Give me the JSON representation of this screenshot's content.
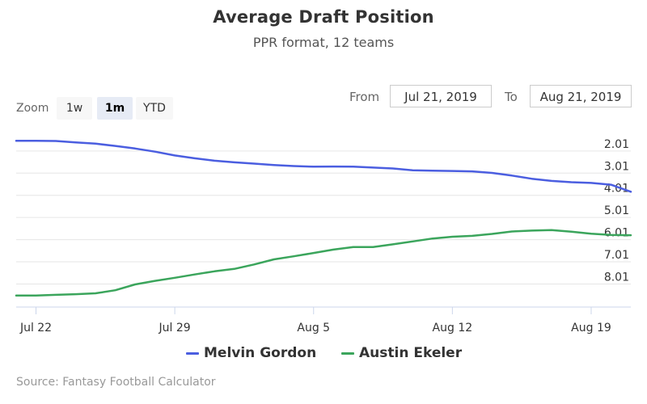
{
  "title": "Average Draft Position",
  "subtitle": "PPR format, 12 teams",
  "range_selector": {
    "zoom_label": "Zoom",
    "buttons": [
      {
        "label": "1w",
        "active": false
      },
      {
        "label": "1m",
        "active": true
      },
      {
        "label": "YTD",
        "active": false
      }
    ],
    "from_label": "From",
    "from_value": "Jul 21, 2019",
    "to_label": "To",
    "to_value": "Aug 21, 2019"
  },
  "credits": "Source: Fantasy Football Calculator",
  "colors": {
    "melvin_gordon": "#4b5ee0",
    "austin_ekeler": "#3ba55c",
    "grid": "#e6e6e6",
    "axis": "#ccd6eb"
  },
  "chart_data": {
    "type": "line",
    "title": "Average Draft Position",
    "subtitle": "PPR format, 12 teams",
    "xlabel": "",
    "ylabel": "",
    "y_reversed": true,
    "y_axis_side": "right",
    "ylim": [
      1.14,
      9.05
    ],
    "y_ticks": [
      "2.01",
      "3.01",
      "4.01",
      "5.01",
      "6.01",
      "7.01",
      "8.01"
    ],
    "x_ticks": [
      {
        "date": "2019-07-22",
        "label": "Jul 22"
      },
      {
        "date": "2019-07-29",
        "label": "Jul 29"
      },
      {
        "date": "2019-08-05",
        "label": "Aug 5"
      },
      {
        "date": "2019-08-12",
        "label": "Aug 12"
      },
      {
        "date": "2019-08-19",
        "label": "Aug 19"
      }
    ],
    "xlim": [
      "2019-07-21",
      "2019-08-21"
    ],
    "grid": true,
    "legend_position": "bottom",
    "series": [
      {
        "name": "Melvin Gordon",
        "color": "#4b5ee0",
        "x": [
          "2019-07-21",
          "2019-07-22",
          "2019-07-23",
          "2019-07-24",
          "2019-07-25",
          "2019-07-26",
          "2019-07-27",
          "2019-07-28",
          "2019-07-29",
          "2019-07-30",
          "2019-07-31",
          "2019-08-01",
          "2019-08-02",
          "2019-08-03",
          "2019-08-04",
          "2019-08-05",
          "2019-08-06",
          "2019-08-07",
          "2019-08-08",
          "2019-08-09",
          "2019-08-10",
          "2019-08-11",
          "2019-08-12",
          "2019-08-13",
          "2019-08-14",
          "2019-08-15",
          "2019-08-16",
          "2019-08-17",
          "2019-08-18",
          "2019-08-19",
          "2019-08-20",
          "2019-08-21"
        ],
        "values": [
          1.55,
          1.55,
          1.56,
          1.62,
          1.68,
          1.78,
          1.9,
          2.04,
          2.21,
          2.34,
          2.45,
          2.52,
          2.58,
          2.64,
          2.69,
          2.72,
          2.71,
          2.72,
          2.76,
          2.8,
          2.88,
          2.9,
          2.91,
          2.93,
          3.0,
          3.12,
          3.26,
          3.36,
          3.42,
          3.45,
          3.53,
          3.85
        ]
      },
      {
        "name": "Austin Ekeler",
        "color": "#3ba55c",
        "x": [
          "2019-07-21",
          "2019-07-22",
          "2019-07-23",
          "2019-07-24",
          "2019-07-25",
          "2019-07-26",
          "2019-07-27",
          "2019-07-28",
          "2019-07-29",
          "2019-07-30",
          "2019-07-31",
          "2019-08-01",
          "2019-08-02",
          "2019-08-03",
          "2019-08-04",
          "2019-08-05",
          "2019-08-06",
          "2019-08-07",
          "2019-08-08",
          "2019-08-09",
          "2019-08-10",
          "2019-08-11",
          "2019-08-12",
          "2019-08-13",
          "2019-08-14",
          "2019-08-15",
          "2019-08-16",
          "2019-08-17",
          "2019-08-18",
          "2019-08-19",
          "2019-08-20",
          "2019-08-21"
        ],
        "values": [
          8.53,
          8.53,
          8.5,
          8.47,
          8.43,
          8.29,
          8.03,
          7.87,
          7.73,
          7.58,
          7.44,
          7.33,
          7.13,
          6.9,
          6.76,
          6.61,
          6.46,
          6.34,
          6.34,
          6.22,
          6.09,
          5.96,
          5.88,
          5.84,
          5.75,
          5.64,
          5.6,
          5.58,
          5.65,
          5.74,
          5.8,
          5.81
        ]
      }
    ]
  }
}
